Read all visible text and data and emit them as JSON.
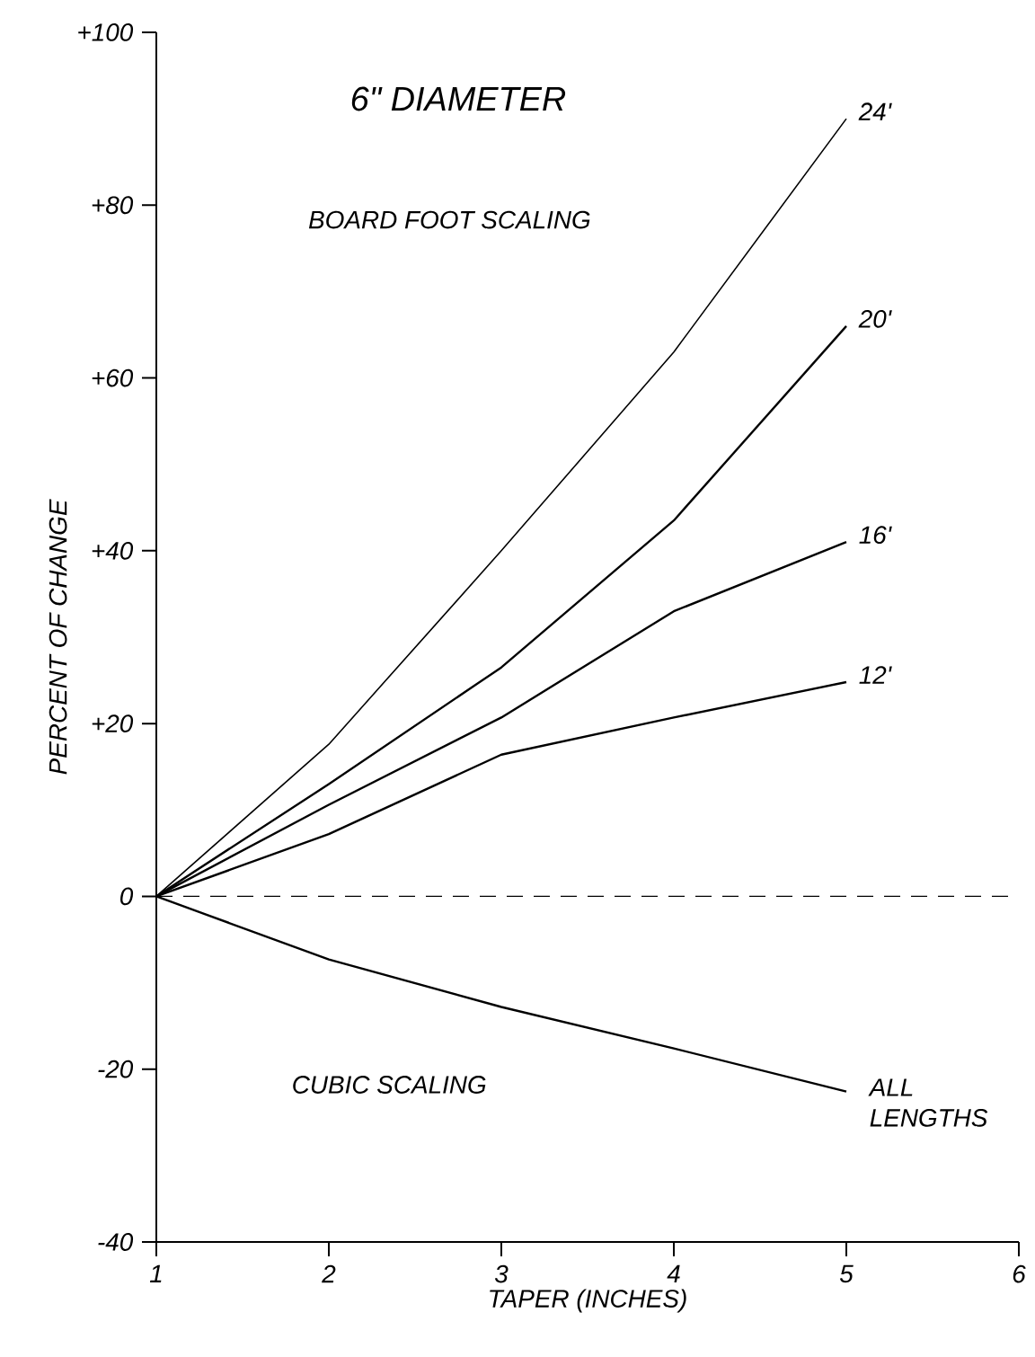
{
  "chart_data": {
    "type": "line",
    "title": "6\" DIAMETER",
    "xlabel": "TAPER (INCHES)",
    "ylabel": "PERCENT OF CHANGE",
    "annotations": [
      "BOARD FOOT SCALING",
      "CUBIC SCALING"
    ],
    "x": [
      1,
      2,
      3,
      4,
      5
    ],
    "series": [
      {
        "name": "24'",
        "color": "#000000",
        "values": [
          0,
          17.6,
          40,
          63,
          90
        ]
      },
      {
        "name": "20'",
        "color": "#000000",
        "values": [
          0,
          13,
          26.5,
          43.5,
          66
        ]
      },
      {
        "name": "16'",
        "color": "#000000",
        "values": [
          0,
          10.6,
          20.7,
          33,
          41
        ]
      },
      {
        "name": "12'",
        "color": "#000000",
        "values": [
          0,
          7.2,
          16.4,
          20.7,
          24.8
        ]
      },
      {
        "name": "ALL LENGTHS",
        "color": "#000000",
        "values": [
          0,
          -7.3,
          -12.8,
          -17.6,
          -22.6
        ]
      }
    ],
    "xlim": [
      1,
      6
    ],
    "ylim": [
      -40,
      100
    ],
    "xticks": [
      1,
      2,
      3,
      4,
      5,
      6
    ],
    "yticks": [
      {
        "value": 100,
        "label": "+100"
      },
      {
        "value": 80,
        "label": "+80"
      },
      {
        "value": 60,
        "label": "+60"
      },
      {
        "value": 40,
        "label": "+40"
      },
      {
        "value": 20,
        "label": "+20"
      },
      0,
      -20,
      -40
    ],
    "ref_lines": [
      {
        "axis": "y",
        "value": 0,
        "line_style": "dashed",
        "color": "#000000"
      }
    ],
    "marker": "none",
    "line_style": "solid"
  }
}
